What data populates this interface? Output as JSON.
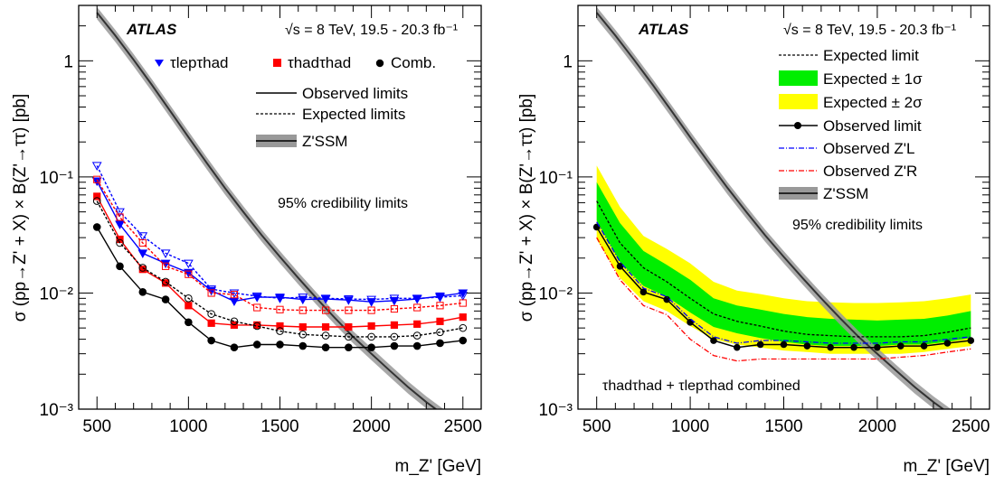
{
  "chart_data": [
    {
      "type": "line",
      "panel": "left",
      "experiment": "ATLAS",
      "energy_label": "√s = 8 TeV, 19.5 - 20.3 fb⁻¹",
      "note": "95% credibility limits",
      "xlabel": "m_Z' [GeV]",
      "ylabel": "σ (pp→Z' + X) × B(Z'→ττ) [pb]",
      "xlim": [
        400,
        2600
      ],
      "ylim": [
        0.001,
        3
      ],
      "yscale": "log",
      "x_ticks": [
        "500",
        "1000",
        "1500",
        "2000",
        "2500"
      ],
      "y_ticks": [
        "10⁻³",
        "10⁻²",
        "10⁻¹",
        "1"
      ],
      "x": [
        500,
        625,
        750,
        875,
        1000,
        1125,
        1250,
        1375,
        1500,
        1625,
        1750,
        1875,
        2000,
        2125,
        2250,
        2375,
        2500
      ],
      "legend": {
        "channels": [
          "τlepτhad",
          "τhadτhad",
          "Comb."
        ],
        "styles": [
          "Observed limits",
          "Expected limits",
          "Z'SSM"
        ]
      },
      "series": [
        {
          "name": "τlepτhad",
          "style": "observed",
          "color": "#0000ff",
          "values": [
            0.092,
            0.039,
            0.022,
            0.018,
            0.015,
            0.0105,
            0.0085,
            0.0092,
            0.0092,
            0.0088,
            0.0089,
            0.0087,
            0.0084,
            0.0086,
            0.0089,
            0.0094,
            0.01
          ]
        },
        {
          "name": "τlepτhad",
          "style": "expected",
          "color": "#0000ff",
          "values": [
            0.125,
            0.05,
            0.031,
            0.022,
            0.018,
            0.0108,
            0.01,
            0.0094,
            0.009,
            0.0092,
            0.009,
            0.0089,
            0.0088,
            0.009,
            0.009,
            0.0092,
            0.0095
          ]
        },
        {
          "name": "τhadτhad",
          "style": "observed",
          "color": "#ff0000",
          "values": [
            0.068,
            0.029,
            0.016,
            0.0122,
            0.0078,
            0.0055,
            0.0053,
            0.0053,
            0.0052,
            0.0051,
            0.0051,
            0.0051,
            0.0052,
            0.0053,
            0.0054,
            0.0057,
            0.0062
          ]
        },
        {
          "name": "τhadτhad",
          "style": "expected",
          "color": "#ff0000",
          "values": [
            0.095,
            0.045,
            0.027,
            0.017,
            0.0145,
            0.01,
            0.0097,
            0.0075,
            0.0072,
            0.0071,
            0.0071,
            0.0071,
            0.0071,
            0.0073,
            0.0075,
            0.0078,
            0.0082
          ]
        },
        {
          "name": "Comb.",
          "style": "observed",
          "color": "#000000",
          "values": [
            0.037,
            0.017,
            0.0102,
            0.0088,
            0.0056,
            0.0039,
            0.0034,
            0.0036,
            0.0036,
            0.0035,
            0.0034,
            0.0034,
            0.0034,
            0.0035,
            0.0035,
            0.0037,
            0.0039
          ]
        },
        {
          "name": "Comb.",
          "style": "expected",
          "color": "#000000",
          "values": [
            0.062,
            0.027,
            0.0165,
            0.0125,
            0.009,
            0.0066,
            0.0057,
            0.0052,
            0.0047,
            0.0044,
            0.0043,
            0.0042,
            0.0042,
            0.0042,
            0.0043,
            0.0046,
            0.005
          ]
        }
      ],
      "theory": {
        "name": "Z'SSM",
        "x": [
          500,
          600,
          700,
          800,
          900,
          1000,
          1100,
          1200,
          1300,
          1400,
          1500,
          1600,
          1700,
          1800,
          1900,
          2000,
          2100,
          2200,
          2300,
          2400,
          2500
        ],
        "values": [
          2.6,
          1.65,
          1.02,
          0.62,
          0.37,
          0.22,
          0.132,
          0.08,
          0.05,
          0.0315,
          0.0205,
          0.0135,
          0.009,
          0.0061,
          0.0042,
          0.003,
          0.00215,
          0.00155,
          0.00115,
          0.00088,
          0.00068
        ],
        "band_frac": 0.12
      }
    },
    {
      "type": "line",
      "panel": "right",
      "experiment": "ATLAS",
      "energy_label": "√s = 8 TeV, 19.5 - 20.3 fb⁻¹",
      "note": "95% credibility limits",
      "channel_label": "τhadτhad + τlepτhad combined",
      "xlabel": "m_Z' [GeV]",
      "ylabel": "σ (pp→Z' + X) × B(Z'→ττ) [pb]",
      "xlim": [
        400,
        2600
      ],
      "ylim": [
        0.001,
        3
      ],
      "yscale": "log",
      "x_ticks": [
        "500",
        "1000",
        "1500",
        "2000",
        "2500"
      ],
      "y_ticks": [
        "10⁻³",
        "10⁻²",
        "10⁻¹",
        "1"
      ],
      "x": [
        500,
        625,
        750,
        875,
        1000,
        1125,
        1250,
        1375,
        1500,
        1625,
        1750,
        1875,
        2000,
        2125,
        2250,
        2375,
        2500
      ],
      "legend": [
        "Expected limit",
        "Expected ± 1σ",
        "Expected ± 2σ",
        "Observed limit",
        "Observed Z'L",
        "Observed Z'R",
        "Z'SSM"
      ],
      "series": [
        {
          "name": "Observed limit",
          "color": "#000000",
          "values": [
            0.037,
            0.017,
            0.0102,
            0.0088,
            0.0056,
            0.0039,
            0.0034,
            0.0036,
            0.0036,
            0.0035,
            0.0034,
            0.0034,
            0.0034,
            0.0035,
            0.0035,
            0.0037,
            0.0039
          ]
        },
        {
          "name": "Expected limit",
          "color": "#000000",
          "values": [
            0.062,
            0.027,
            0.0165,
            0.0125,
            0.009,
            0.0066,
            0.0057,
            0.0052,
            0.0047,
            0.0044,
            0.0043,
            0.0042,
            0.0042,
            0.0042,
            0.0043,
            0.0046,
            0.005
          ]
        },
        {
          "name": "Observed Z'L",
          "color": "#0000ff",
          "values": [
            0.041,
            0.0185,
            0.011,
            0.0093,
            0.006,
            0.0042,
            0.0037,
            0.0039,
            0.0039,
            0.0038,
            0.0037,
            0.0037,
            0.0037,
            0.0038,
            0.0038,
            0.004,
            0.0042
          ]
        },
        {
          "name": "Observed Z'R",
          "color": "#ff0000",
          "values": [
            0.03,
            0.013,
            0.0078,
            0.0065,
            0.004,
            0.0029,
            0.0026,
            0.0027,
            0.0027,
            0.0027,
            0.0027,
            0.0027,
            0.0027,
            0.0028,
            0.0029,
            0.0031,
            0.0033
          ]
        }
      ],
      "bands": {
        "sigma2_low": [
          0.029,
          0.0135,
          0.0085,
          0.007,
          0.0052,
          0.004,
          0.0036,
          0.0034,
          0.0032,
          0.0031,
          0.003,
          0.003,
          0.003,
          0.003,
          0.0031,
          0.0033,
          0.0035
        ],
        "sigma1_low": [
          0.042,
          0.0185,
          0.0115,
          0.0093,
          0.0068,
          0.0051,
          0.0045,
          0.0041,
          0.0038,
          0.0036,
          0.0035,
          0.0035,
          0.0035,
          0.0036,
          0.0036,
          0.0038,
          0.0041
        ],
        "sigma1_high": [
          0.09,
          0.04,
          0.023,
          0.0175,
          0.013,
          0.009,
          0.0078,
          0.0072,
          0.0066,
          0.0062,
          0.006,
          0.0059,
          0.0058,
          0.0059,
          0.006,
          0.0064,
          0.007
        ],
        "sigma2_high": [
          0.125,
          0.055,
          0.031,
          0.024,
          0.018,
          0.0125,
          0.0105,
          0.0098,
          0.009,
          0.0085,
          0.0083,
          0.0082,
          0.0082,
          0.0083,
          0.0085,
          0.009,
          0.0097
        ]
      },
      "theory": {
        "name": "Z'SSM",
        "x": [
          500,
          600,
          700,
          800,
          900,
          1000,
          1100,
          1200,
          1300,
          1400,
          1500,
          1600,
          1700,
          1800,
          1900,
          2000,
          2100,
          2200,
          2300,
          2400,
          2500
        ],
        "values": [
          2.6,
          1.65,
          1.02,
          0.62,
          0.37,
          0.22,
          0.132,
          0.08,
          0.05,
          0.0315,
          0.0205,
          0.0135,
          0.009,
          0.0061,
          0.0042,
          0.003,
          0.00215,
          0.00155,
          0.00115,
          0.00088,
          0.00068
        ],
        "band_frac": 0.12
      }
    }
  ]
}
